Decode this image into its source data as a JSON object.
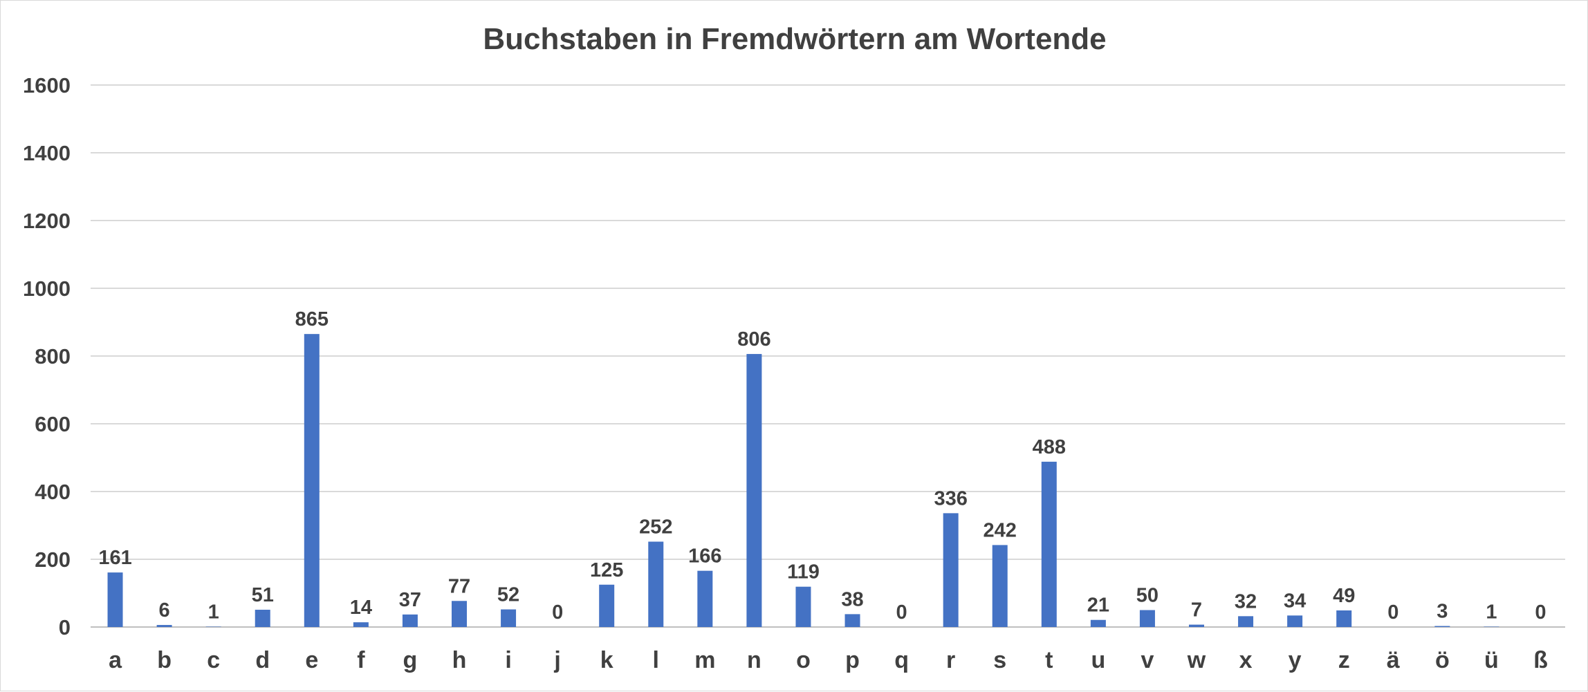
{
  "chart_data": {
    "type": "bar",
    "title": "Buchstaben in Fremdwörtern am Wortende",
    "xlabel": "",
    "ylabel": "",
    "ylim": [
      0,
      1600
    ],
    "yticks": [
      0,
      200,
      400,
      600,
      800,
      1000,
      1200,
      1400,
      1600
    ],
    "grid": true,
    "legend": "none",
    "bar_color": "#4472c4",
    "categories": [
      "a",
      "b",
      "c",
      "d",
      "e",
      "f",
      "g",
      "h",
      "i",
      "j",
      "k",
      "l",
      "m",
      "n",
      "o",
      "p",
      "q",
      "r",
      "s",
      "t",
      "u",
      "v",
      "w",
      "x",
      "y",
      "z",
      "ä",
      "ö",
      "ü",
      "ß"
    ],
    "values": [
      161,
      6,
      1,
      51,
      865,
      14,
      37,
      77,
      52,
      0,
      125,
      252,
      166,
      806,
      119,
      38,
      0,
      336,
      242,
      488,
      21,
      50,
      7,
      32,
      34,
      49,
      0,
      3,
      1,
      0
    ]
  }
}
